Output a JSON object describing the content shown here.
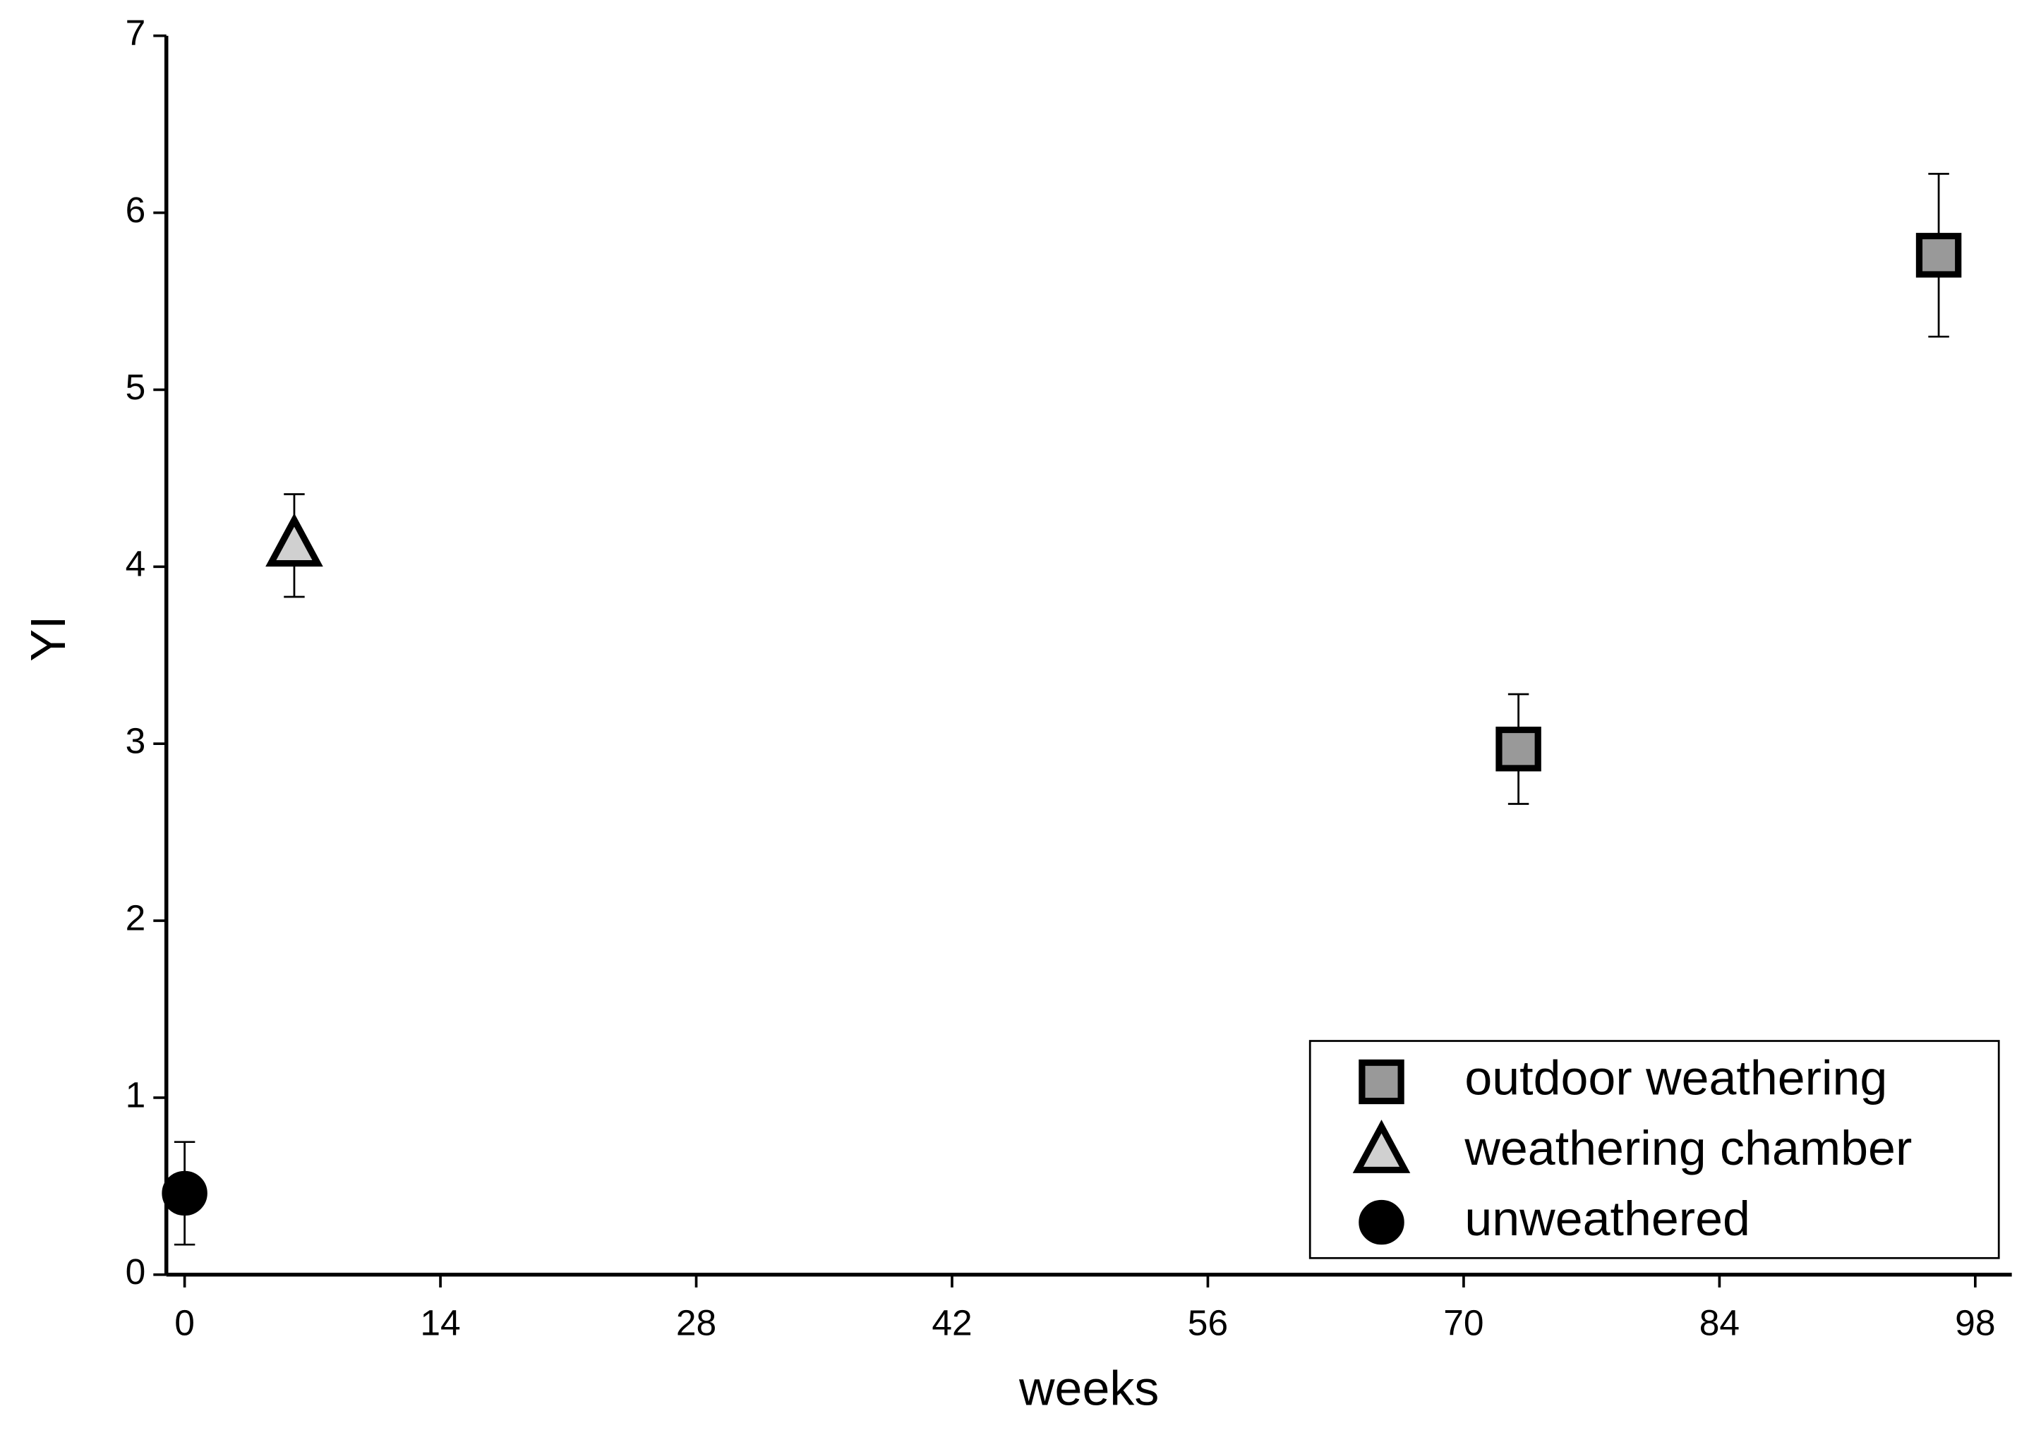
{
  "chart_data": {
    "type": "scatter",
    "x_label": "weeks",
    "y_label": "YI",
    "xlim": [
      -1,
      100
    ],
    "ylim": [
      0,
      7
    ],
    "xticks": [
      0,
      14,
      28,
      42,
      56,
      70,
      84,
      98
    ],
    "yticks": [
      0,
      1,
      2,
      3,
      4,
      5,
      6,
      7
    ],
    "legend": "lower right",
    "series": [
      {
        "name": "outdoor weathering",
        "marker": "square",
        "color": "#999999",
        "x": [
          73,
          96
        ],
        "values": [
          2.97,
          5.76
        ],
        "errors": [
          0.31,
          0.46
        ]
      },
      {
        "name": "weathering chamber",
        "marker": "triangle",
        "color": "#d0d0d0",
        "x": [
          6
        ],
        "values": [
          4.12
        ],
        "errors": [
          0.29
        ]
      },
      {
        "name": "unweathered",
        "marker": "circle",
        "color": "#000000",
        "x": [
          0
        ],
        "values": [
          0.46
        ],
        "errors": [
          0.29
        ]
      }
    ]
  }
}
